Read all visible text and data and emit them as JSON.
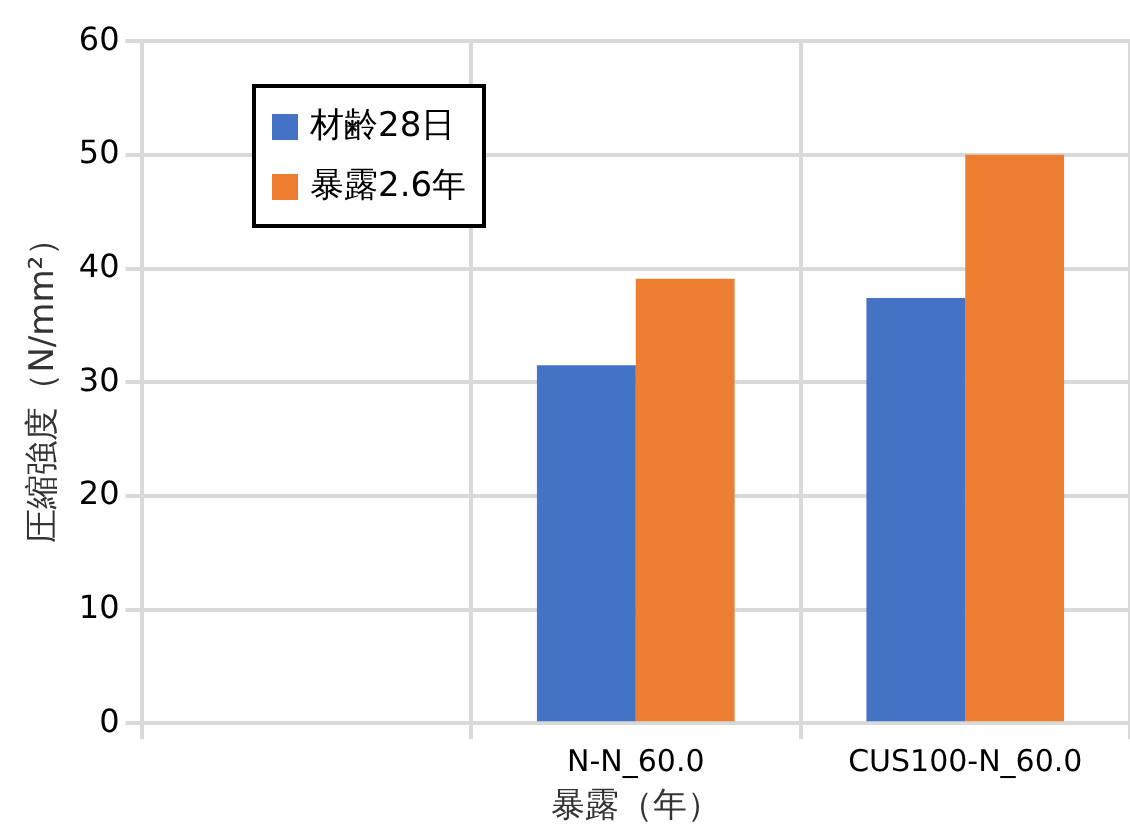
{
  "chart_data": {
    "type": "bar",
    "xlabel": "暴露（年）",
    "ylabel": "圧縮強度（N/mm²）",
    "categories": [
      null,
      "N-N_60.0",
      "CUS100-N_60.0"
    ],
    "series": [
      {
        "name": "材齢28日",
        "color": "#4472c4",
        "values": [
          null,
          31.5,
          37.4
        ]
      },
      {
        "name": "暴露2.6年",
        "color": "#ed7d31",
        "values": [
          null,
          39.1,
          50
        ]
      }
    ],
    "ylim": [
      0,
      60
    ],
    "yticks": [
      0,
      10,
      20,
      30,
      40,
      50,
      60
    ],
    "grid": true,
    "legend": "top left"
  }
}
